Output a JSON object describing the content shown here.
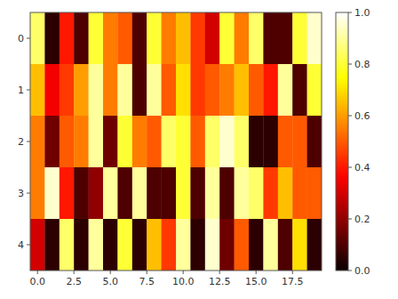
{
  "chart_data": {
    "type": "heatmap",
    "color": "hot",
    "x": [
      0,
      1,
      2,
      3,
      4,
      5,
      6,
      7,
      8,
      9,
      10,
      11,
      12,
      13,
      14,
      15,
      16,
      17,
      18,
      19
    ],
    "y": [
      0,
      1,
      2,
      3,
      4
    ],
    "values": [
      [
        0.85,
        0.05,
        0.4,
        0.1,
        0.8,
        0.55,
        0.5,
        0.1,
        0.8,
        0.55,
        0.65,
        0.45,
        0.3,
        0.8,
        0.55,
        0.85,
        0.1,
        0.1,
        0.8,
        0.95
      ],
      [
        0.65,
        0.35,
        0.45,
        0.6,
        0.9,
        0.55,
        0.9,
        0.1,
        0.9,
        0.5,
        0.7,
        0.45,
        0.5,
        0.55,
        0.65,
        0.5,
        0.4,
        0.9,
        0.1,
        0.8
      ],
      [
        0.55,
        0.15,
        0.5,
        0.55,
        0.9,
        0.15,
        0.8,
        0.55,
        0.5,
        0.85,
        0.8,
        0.5,
        0.85,
        0.95,
        0.85,
        0.05,
        0.05,
        0.5,
        0.5,
        0.1
      ],
      [
        0.55,
        0.95,
        0.4,
        0.1,
        0.2,
        0.9,
        0.1,
        0.9,
        0.1,
        0.1,
        0.8,
        0.1,
        0.9,
        0.1,
        0.9,
        0.85,
        0.45,
        0.65,
        0.5,
        0.5
      ],
      [
        0.3,
        0.05,
        0.85,
        0.05,
        0.9,
        0.05,
        0.8,
        0.05,
        0.65,
        0.45,
        0.9,
        0.05,
        0.95,
        0.15,
        0.5,
        0.05,
        0.9,
        0.1,
        0.7,
        0.05
      ]
    ],
    "xlim": [
      -0.5,
      19.5
    ],
    "xticks": [
      {
        "value": 0,
        "label": "0.0"
      },
      2.5,
      {
        "value": 5,
        "label": "5.0"
      },
      7.5,
      {
        "value": 10,
        "label": "10.0"
      },
      12.5,
      {
        "value": 15,
        "label": "15.0"
      },
      17.5
    ],
    "ylim": [
      4.5,
      -0.5
    ],
    "yticks": [
      0,
      1,
      2,
      3,
      4
    ],
    "colorbar": {
      "range": [
        0,
        1
      ],
      "ticks": [
        {
          "value": 0,
          "label": "0.0"
        },
        0.2,
        0.4,
        0.6,
        0.8,
        {
          "value": 1,
          "label": "1.0"
        }
      ]
    }
  }
}
